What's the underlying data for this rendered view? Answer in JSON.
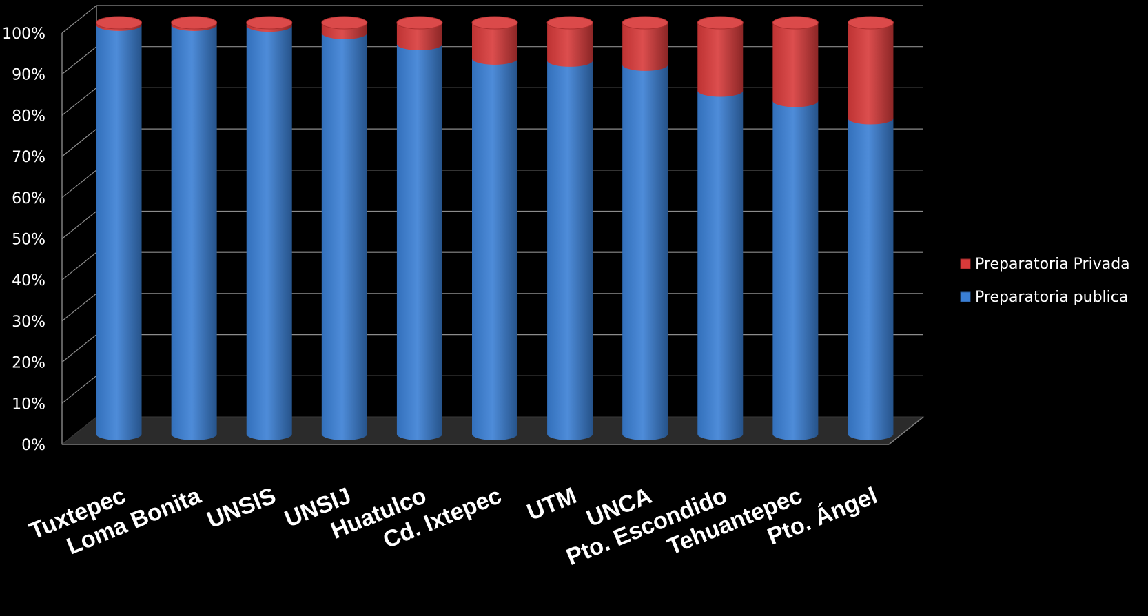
{
  "chart_data": {
    "type": "bar",
    "stacked": true,
    "percent": true,
    "three_d": true,
    "categories": [
      "Tuxtepec",
      "Loma Bonita",
      "UNSIS",
      "UNSIJ",
      "Huatulco",
      "Cd. Ixtepec",
      "UTM",
      "UNCA",
      "Pto. Escondido",
      "Tehuantepec",
      "Pto. Ángel"
    ],
    "series": [
      {
        "name": "Preparatoria publica",
        "color": "#3a7fd5",
        "values": [
          99.5,
          99.5,
          99.3,
          97.5,
          94.8,
          91.3,
          90.8,
          89.8,
          83.5,
          81.0,
          76.8
        ]
      },
      {
        "name": "Preparatoria Privada",
        "color": "#d83a3a",
        "values": [
          0.5,
          0.5,
          0.7,
          2.5,
          5.2,
          8.7,
          9.2,
          10.2,
          16.5,
          19.0,
          23.2
        ]
      }
    ],
    "ylim": [
      0,
      100
    ],
    "yticks": [
      "0%",
      "10%",
      "20%",
      "30%",
      "40%",
      "50%",
      "60%",
      "70%",
      "80%",
      "90%",
      "100%"
    ],
    "title": "",
    "xlabel": "",
    "ylabel": "",
    "grid": true,
    "legend_position": "right",
    "legend_order": [
      "Preparatoria Privada",
      "Preparatoria publica"
    ],
    "background": "#000000"
  }
}
